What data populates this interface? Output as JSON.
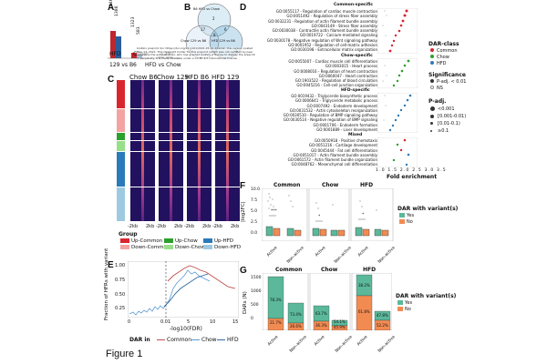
{
  "panel_labels": {
    "a": "A",
    "b": "B",
    "c": "C",
    "d": "D",
    "e": "E",
    "f": "F",
    "g": "G"
  },
  "figure_caption": "Figure 1",
  "panel_a": {
    "bar_values": [
      "1946",
      "1386",
      "1323",
      "583"
    ],
    "comparison_labels": [
      "HFD",
      "Chow",
      "129",
      "129 vs B6",
      "HFD vs Chow"
    ],
    "colors": {
      "red": "#c0262e",
      "blue": "#2b5d9e"
    }
  },
  "panel_b": {
    "circle_labels": [
      "B6 HFD vs Chow",
      "Chow 129 vs B6",
      "HFD 129 vs B6"
    ],
    "region_values": [
      "2",
      "17",
      "6",
      "8",
      "5",
      "3",
      "1"
    ],
    "overlay_text": "bioRxiv preprint doi: https://doi.org/10.1101/2021.05.14.444242; this version posted May 13, 2021. The copyright holder for this preprint (which was not certified by peer review) is the author/funder, who has granted bioRxiv a license to display the preprint in perpetuity. It is made available under a CC-BY 4.0 International license."
  },
  "panel_c": {
    "column_headers": [
      "Chow B6",
      "Chow 129",
      "HFD B6",
      "HFD 129"
    ],
    "x_ticks": [
      "-2kb",
      "2kb"
    ],
    "group_title": "Group",
    "groups": [
      {
        "label": "Up-Common",
        "color": "#d9262e"
      },
      {
        "label": "Up-Chow",
        "color": "#2ca02c"
      },
      {
        "label": "Up-HFD",
        "color": "#2b7bba"
      },
      {
        "label": "Down-Common",
        "color": "#f4a3a3"
      },
      {
        "label": "Down-Chow",
        "color": "#98df8a"
      },
      {
        "label": "Down-HFD",
        "color": "#9ecae1"
      }
    ],
    "row_colors": [
      "#d9262e",
      "#f4a3a3",
      "#2ca02c",
      "#98df8a",
      "#2b7bba",
      "#9ecae1"
    ]
  },
  "panel_d": {
    "sections": [
      {
        "title": "Common-specific",
        "terms": [
          "GO:0055117 - Regulation of cardiac muscle contraction",
          "GO:0051492 - Regulation of stress fiber assembly",
          "GO:0032231 - Regulation of actin filament bundle assembly",
          "GO:0043149 - Stress fiber assembly",
          "GO:0030038 - Contractile actin filament bundle assembly",
          "GO:0019722 - Calcium-mediated signaling",
          "GO:0030178 - Negative regulation of Wnt signaling pathway",
          "GO:0001952 - Regulation of cell-matrix adhesion",
          "GO:0030198 - Extracellular matrix organization"
        ]
      },
      {
        "title": "Chow-specific",
        "terms": [
          "GO:0055007 - Cardiac muscle cell differentiation",
          "GO:0003015 - Heart process",
          "GO:0008016 - Regulation of heart contraction",
          "GO:0060047 - Heart contraction",
          "GO:1903522 - Regulation of blood circulation",
          "GO:0045216 - Cell-cell junction organization"
        ]
      },
      {
        "title": "HFD-specific",
        "terms": [
          "GO:0019432 - Triglyceride biosynthetic process",
          "GO:0006641 - Triglyceride metabolic process",
          "GO:0007492 - Endoderm development",
          "GO:0031532 - Actin cytoskeleton reorganization",
          "GO:0030510 - Regulation of BMP signaling pathway",
          "GO:0030514 - Negative regulation of BMP signaling",
          "GO:0001706 - Endoderm formation",
          "GO:0001889 - Liver development"
        ]
      },
      {
        "title": "Mixed",
        "terms": [
          "GO:0050918 - Positive chemotaxis",
          "GO:0051216 - Cartilage development",
          "GO:0045444 - Fat cell differentiation",
          "GO:0051017 - Actin filament bundle assembly",
          "GO:0061572 - Actin filament bundle organization",
          "GO:0048762 - Mesenchymal cell differentiation"
        ]
      }
    ],
    "x_ticks": [
      "1.0",
      "1.5",
      "2.0",
      "2.5",
      "3.0",
      "3.5"
    ],
    "x_label": "Fold enrichment",
    "legend": {
      "dar_class_title": "DAR-class",
      "dar_classes": [
        {
          "label": "Common",
          "color": "#d9262e"
        },
        {
          "label": "Chow",
          "color": "#2ca02c"
        },
        {
          "label": "HFD",
          "color": "#2b7bba"
        }
      ],
      "significance_title": "Significance",
      "significance": [
        "P-adj. < 0.01",
        "NS"
      ],
      "padj_title": "P-adj.",
      "padj": [
        "<0.001",
        "[0.001-0.01)",
        "[0.01-0.1)",
        "≥0.1"
      ]
    }
  },
  "panel_e": {
    "y_label": "Fraction of HFRs with variant",
    "x_label": "-log10(FDR)",
    "y_ticks": [
      "1.00",
      "0.75",
      "0.50",
      "0.25"
    ],
    "x_ticks": [
      "0",
      "0.01",
      "5",
      "10",
      "15"
    ],
    "legend_title": "DAR in",
    "series": [
      {
        "name": "Common",
        "color": "#c0504d"
      },
      {
        "name": "Chow",
        "color": "#5a9bd4"
      },
      {
        "name": "HFD",
        "color": "#2f6aa0"
      }
    ]
  },
  "panel_f": {
    "group_titles": [
      "Common",
      "Chow",
      "HFD"
    ],
    "y_label": "|log2FC|",
    "y_ticks": [
      "10.0",
      "7.5",
      "5.0",
      "2.5",
      "0.0"
    ],
    "x_ticks": [
      "Active",
      "Non-active"
    ],
    "significance": [
      "***",
      "*",
      "*"
    ],
    "legend_title": "DAR with variant(s)",
    "legend": [
      {
        "label": "Yes",
        "color": "#5bb89a"
      },
      {
        "label": "No",
        "color": "#f28b52"
      }
    ]
  },
  "panel_g": {
    "group_titles": [
      "Common",
      "Chow",
      "HFD"
    ],
    "y_label": "DARs (N)",
    "y_ticks": [
      "1500",
      "1000",
      "500",
      "0"
    ],
    "x_ticks": [
      "Active",
      "Non-active"
    ],
    "bar_labels_yes": [
      "78.3%",
      "73.4%",
      "63.7%",
      "54.1%",
      "38.2%",
      "47.8%"
    ],
    "bar_labels_no": [
      "21.7%",
      "26.6%",
      "36.3%",
      "45.9%",
      "61.8%",
      "52.2%"
    ],
    "legend_title": "DAR with variant(s)",
    "legend": [
      {
        "label": "Yes",
        "color": "#5bb89a"
      },
      {
        "label": "No",
        "color": "#f28b52"
      }
    ]
  }
}
